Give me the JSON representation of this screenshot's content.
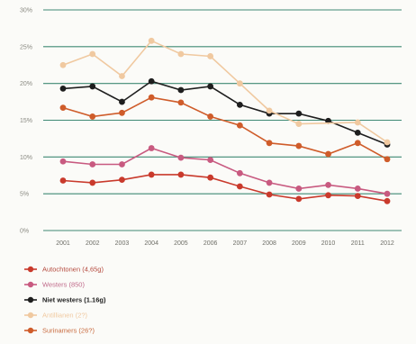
{
  "chart_data": {
    "type": "line",
    "x": [
      "2001",
      "2002",
      "2003",
      "2004",
      "2005",
      "2006",
      "2007",
      "2008",
      "2009",
      "2010",
      "2011",
      "2012"
    ],
    "ylim": [
      0,
      30
    ],
    "yticks": [
      "0%",
      "5%",
      "10%",
      "15%",
      "20%",
      "25%",
      "30%"
    ],
    "grid": true,
    "legend_placement": "bottom-left",
    "series": [
      {
        "name": "Autochtonen (4,65g)",
        "color": "#c93a2c",
        "text_color": "#b54a3e",
        "bold": false,
        "values": [
          6.8,
          6.5,
          6.9,
          7.6,
          7.6,
          7.2,
          6.0,
          4.9,
          4.3,
          4.8,
          4.7,
          4.0
        ]
      },
      {
        "name": "Westers (850)",
        "color": "#c85a80",
        "text_color": "#c06a8a",
        "bold": false,
        "values": [
          9.4,
          9.0,
          9.0,
          11.2,
          9.9,
          9.6,
          7.8,
          6.5,
          5.7,
          6.2,
          5.7,
          5.0
        ]
      },
      {
        "name": "Niet westers (1.16g)",
        "color": "#1e1e1e",
        "text_color": "#1e1e1e",
        "bold": true,
        "values": [
          19.3,
          19.6,
          17.5,
          20.3,
          19.1,
          19.6,
          17.1,
          15.9,
          15.9,
          14.9,
          13.3,
          11.7
        ]
      },
      {
        "name": "Antillianen (2?)",
        "color": "#f0c9a0",
        "text_color": "#f0c9a0",
        "bold": false,
        "values": [
          22.5,
          24.0,
          21.0,
          25.8,
          24.0,
          23.7,
          20.0,
          16.3,
          14.5,
          null,
          14.7,
          12.0
        ]
      },
      {
        "name": "Surinamers (26?)",
        "color": "#cf5c2a",
        "text_color": "#c86a3e",
        "bold": false,
        "values": [
          16.7,
          15.5,
          16.0,
          18.1,
          17.4,
          15.5,
          14.3,
          11.9,
          11.5,
          10.4,
          11.9,
          9.7
        ]
      }
    ]
  }
}
